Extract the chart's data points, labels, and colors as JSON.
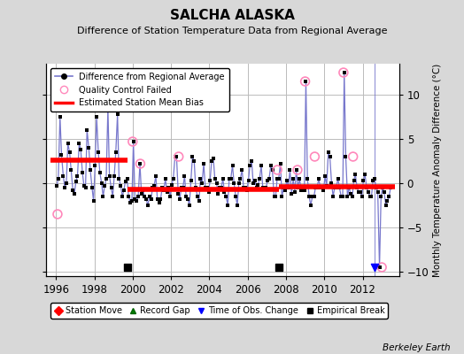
{
  "title": "SALCHA ALASKA",
  "subtitle": "Difference of Station Temperature Data from Regional Average",
  "ylabel_right": "Monthly Temperature Anomaly Difference (°C)",
  "credit": "Berkeley Earth",
  "xlim": [
    1995.5,
    2013.9
  ],
  "ylim": [
    -10.5,
    13.5
  ],
  "yticks": [
    -10,
    -5,
    0,
    5,
    10
  ],
  "xticks": [
    1996,
    1998,
    2000,
    2002,
    2004,
    2006,
    2008,
    2010,
    2012
  ],
  "background_color": "#d8d8d8",
  "plot_bg_color": "#ffffff",
  "grid_color": "#bbbbbb",
  "line_color": "#7777cc",
  "dot_color": "#000000",
  "qc_color": "#ff88bb",
  "bias_color": "#ff0000",
  "bias_segments": [
    {
      "x_start": 1995.7,
      "x_end": 1999.75,
      "y": 2.6
    },
    {
      "x_start": 1999.75,
      "x_end": 2007.65,
      "y": -0.65
    },
    {
      "x_start": 2007.65,
      "x_end": 2013.7,
      "y": -0.35
    }
  ],
  "empirical_breaks": [
    1999.75,
    2007.65
  ],
  "time_obs_change": [
    2012.6
  ],
  "qc_failed_points": [
    [
      1996.08,
      -3.5
    ],
    [
      2000.0,
      4.7
    ],
    [
      2000.4,
      2.2
    ],
    [
      2002.4,
      3.0
    ],
    [
      2007.55,
      1.5
    ],
    [
      2008.6,
      1.5
    ],
    [
      2009.0,
      11.5
    ],
    [
      2009.5,
      3.0
    ],
    [
      2011.0,
      12.5
    ],
    [
      2011.5,
      3.0
    ],
    [
      2013.0,
      -9.5
    ]
  ],
  "main_series_x": [
    1996.04,
    1996.12,
    1996.21,
    1996.29,
    1996.38,
    1996.46,
    1996.54,
    1996.62,
    1996.71,
    1996.79,
    1996.88,
    1996.96,
    1997.04,
    1997.12,
    1997.21,
    1997.29,
    1997.38,
    1997.46,
    1997.54,
    1997.62,
    1997.71,
    1997.79,
    1997.88,
    1997.96,
    1998.04,
    1998.12,
    1998.21,
    1998.29,
    1998.38,
    1998.46,
    1998.54,
    1998.62,
    1998.71,
    1998.79,
    1998.88,
    1998.96,
    1999.04,
    1999.12,
    1999.21,
    1999.29,
    1999.38,
    1999.46,
    1999.54,
    1999.62,
    1999.71,
    1999.79,
    1999.88,
    1999.96,
    2000.04,
    2000.12,
    2000.21,
    2000.29,
    2000.38,
    2000.46,
    2000.54,
    2000.62,
    2000.71,
    2000.79,
    2000.88,
    2000.96,
    2001.04,
    2001.12,
    2001.21,
    2001.29,
    2001.38,
    2001.46,
    2001.54,
    2001.62,
    2001.71,
    2001.79,
    2001.88,
    2001.96,
    2002.04,
    2002.12,
    2002.21,
    2002.29,
    2002.38,
    2002.46,
    2002.54,
    2002.62,
    2002.71,
    2002.79,
    2002.88,
    2002.96,
    2003.04,
    2003.12,
    2003.21,
    2003.29,
    2003.38,
    2003.46,
    2003.54,
    2003.62,
    2003.71,
    2003.79,
    2003.88,
    2003.96,
    2004.04,
    2004.12,
    2004.21,
    2004.29,
    2004.38,
    2004.46,
    2004.54,
    2004.62,
    2004.71,
    2004.79,
    2004.88,
    2004.96,
    2005.04,
    2005.12,
    2005.21,
    2005.29,
    2005.38,
    2005.46,
    2005.54,
    2005.62,
    2005.71,
    2005.79,
    2005.88,
    2005.96,
    2006.04,
    2006.12,
    2006.21,
    2006.29,
    2006.38,
    2006.46,
    2006.54,
    2006.62,
    2006.71,
    2006.79,
    2006.88,
    2006.96,
    2007.04,
    2007.12,
    2007.21,
    2007.29,
    2007.38,
    2007.46,
    2007.54,
    2007.62,
    2007.71,
    2007.79,
    2007.88,
    2007.96,
    2008.04,
    2008.12,
    2008.21,
    2008.29,
    2008.38,
    2008.46,
    2008.54,
    2008.62,
    2008.71,
    2008.79,
    2008.88,
    2008.96,
    2009.04,
    2009.12,
    2009.21,
    2009.29,
    2009.38,
    2009.46,
    2009.54,
    2009.62,
    2009.71,
    2009.79,
    2009.88,
    2009.96,
    2010.04,
    2010.12,
    2010.21,
    2010.29,
    2010.38,
    2010.46,
    2010.54,
    2010.62,
    2010.71,
    2010.79,
    2010.88,
    2010.96,
    2011.04,
    2011.12,
    2011.21,
    2011.29,
    2011.38,
    2011.46,
    2011.54,
    2011.62,
    2011.71,
    2011.79,
    2011.88,
    2011.96,
    2012.04,
    2012.12,
    2012.21,
    2012.29,
    2012.38,
    2012.46,
    2012.54,
    2012.62,
    2012.71,
    2012.79,
    2012.88,
    2012.96,
    2013.04,
    2013.12,
    2013.21,
    2013.29,
    2013.38,
    2013.46
  ],
  "main_series_y": [
    -0.3,
    0.5,
    7.5,
    3.2,
    0.8,
    -0.5,
    0.0,
    4.5,
    3.5,
    1.5,
    -0.8,
    -1.2,
    0.2,
    0.8,
    4.5,
    3.8,
    1.2,
    -0.3,
    -0.5,
    6.0,
    4.0,
    1.5,
    -0.5,
    -2.0,
    2.0,
    7.5,
    3.5,
    1.2,
    0.0,
    -1.5,
    -0.3,
    0.5,
    8.5,
    0.8,
    -0.5,
    -1.5,
    0.8,
    3.5,
    7.8,
    0.5,
    -0.3,
    -1.5,
    -0.8,
    0.2,
    0.5,
    -1.5,
    -2.2,
    -2.0,
    4.7,
    -1.8,
    -2.0,
    -1.5,
    2.2,
    -1.2,
    -0.8,
    -1.5,
    -1.8,
    -2.5,
    -1.5,
    -1.8,
    -0.5,
    -0.3,
    0.8,
    -1.8,
    -2.2,
    -1.8,
    -0.5,
    -0.8,
    0.5,
    -1.0,
    -0.5,
    -1.5,
    -0.2,
    0.5,
    3.0,
    3.0,
    -1.2,
    -1.8,
    -0.5,
    -0.5,
    0.8,
    -1.5,
    -1.8,
    -2.5,
    0.3,
    3.0,
    2.5,
    -0.5,
    -1.5,
    -2.0,
    0.5,
    0.0,
    2.2,
    -0.5,
    -0.5,
    -1.0,
    0.3,
    2.5,
    2.8,
    0.5,
    0.0,
    -1.2,
    -0.5,
    -0.5,
    0.5,
    -1.0,
    -1.5,
    -2.5,
    0.5,
    0.5,
    2.0,
    0.0,
    -1.5,
    -2.5,
    0.0,
    0.5,
    1.5,
    -0.5,
    -0.5,
    -0.8,
    0.3,
    2.0,
    2.5,
    0.0,
    0.3,
    -0.5,
    -0.2,
    0.5,
    2.0,
    -0.5,
    -0.5,
    -0.5,
    0.3,
    0.5,
    2.0,
    1.5,
    -1.5,
    -1.5,
    0.5,
    0.5,
    2.2,
    -1.5,
    -0.5,
    -0.8,
    0.3,
    -0.5,
    1.5,
    -1.2,
    0.5,
    -1.0,
    1.5,
    -0.5,
    0.5,
    -0.8,
    -0.5,
    -0.8,
    11.5,
    0.5,
    -1.5,
    -2.5,
    -1.5,
    -1.5,
    -0.5,
    -0.5,
    0.5,
    -0.5,
    -0.5,
    -0.8,
    0.8,
    -0.3,
    3.5,
    3.0,
    0.0,
    -1.5,
    -0.5,
    -0.5,
    0.5,
    -0.5,
    -1.5,
    -1.5,
    12.5,
    3.0,
    -1.5,
    -0.5,
    -1.2,
    -1.5,
    0.3,
    1.0,
    -0.5,
    -1.0,
    -1.0,
    -1.5,
    0.3,
    1.0,
    -0.5,
    -1.0,
    -1.5,
    -1.5,
    0.3,
    0.5,
    -0.5,
    -1.0,
    -9.5,
    -1.5,
    -0.5,
    -1.0,
    -2.5,
    -2.0,
    -1.5,
    -0.5
  ]
}
